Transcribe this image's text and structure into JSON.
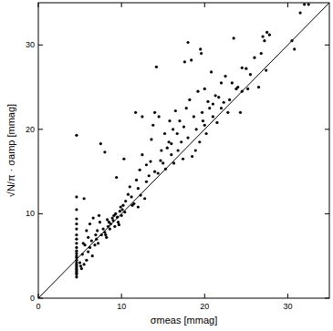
{
  "chart_data": {
    "type": "scatter",
    "x_label": "σmeas [mmag]",
    "y_label": "√N/π · σamp [mmag]",
    "xlim": [
      0,
      35
    ],
    "ylim": [
      0,
      35
    ],
    "xticks": [
      0,
      10,
      20,
      30
    ],
    "yticks": [
      0,
      10,
      20,
      30
    ],
    "grid": false,
    "series": [
      {
        "type": "scatter",
        "marker": "dot",
        "color": "#000000",
        "x": [
          4.6,
          4.6,
          4.6,
          4.6,
          4.6,
          4.6,
          4.6,
          4.6,
          4.6,
          4.6,
          4.6,
          4.6,
          4.6,
          4.6,
          4.6,
          4.6,
          4.6,
          4.6,
          4.6,
          4.6,
          4.6,
          4.6,
          4.6,
          4.6,
          5.2,
          5.5,
          5.3,
          5.8,
          6,
          6.2,
          5.6,
          6.5,
          6.4,
          6.8,
          7,
          7.2,
          6.9,
          5.5,
          5.8,
          6.2,
          7.5,
          8,
          7.3,
          7.6,
          7.8,
          8,
          8.2,
          8.4,
          8.5,
          8.7,
          8.9,
          9,
          9.2,
          9.3,
          9.5,
          9.6,
          9.8,
          10,
          10.1,
          9.4,
          10.2,
          10.5,
          10.3,
          10.8,
          11,
          11.2,
          11.5,
          11.7,
          11.8,
          12,
          12,
          12.2,
          12.3,
          12.5,
          12.5,
          12.8,
          13,
          13,
          13.3,
          13.5,
          13.6,
          13.8,
          14,
          14,
          14.2,
          14.4,
          14.5,
          14.7,
          14.8,
          15,
          15.2,
          15.3,
          15.5,
          15.7,
          15.8,
          16,
          16,
          16.2,
          16.3,
          16.5,
          16.7,
          16.8,
          17,
          17.2,
          17.4,
          17.5,
          17.6,
          17.8,
          18,
          18,
          18.2,
          18.4,
          18.5,
          18.7,
          18.9,
          19,
          19.2,
          19.4,
          19.5,
          19.6,
          19.7,
          19.8,
          20,
          20,
          20.2,
          20.4,
          20.6,
          20.8,
          21,
          21,
          21.3,
          21.5,
          21.7,
          22,
          22,
          22.3,
          22.5,
          22.8,
          23,
          23.3,
          23.5,
          23.8,
          24,
          24.3,
          24.5,
          24.5,
          25,
          25.2,
          25.5,
          26,
          26.5,
          26.8,
          27,
          27.2,
          27.4,
          27.5,
          27.8,
          30.5,
          30.8,
          31.5,
          32,
          32.5,
          5,
          5.1,
          5.4,
          6,
          6.6,
          7.1,
          7.4,
          8.1,
          8.6,
          9.1,
          9.7,
          10.4,
          11.3,
          8.3,
          9.9
        ],
        "values": [
          2.5,
          2.8,
          3,
          3.2,
          3.4,
          3.6,
          3.8,
          4,
          4.2,
          4.5,
          4.8,
          5,
          5.3,
          5.6,
          6,
          6.5,
          7,
          7.5,
          8.2,
          8.8,
          9.4,
          10.5,
          12,
          19.3,
          3.5,
          4,
          5.2,
          4.5,
          5.5,
          6,
          6.3,
          5,
          6.8,
          6.3,
          7,
          6.5,
          7.5,
          11.8,
          8,
          8.8,
          18.3,
          17.3,
          9.8,
          7.5,
          8.2,
          7.8,
          7.2,
          8.5,
          9,
          8.8,
          9.5,
          9.2,
          8.5,
          10,
          9.6,
          9,
          10.3,
          9.8,
          10.5,
          14.3,
          11,
          11.5,
          16.5,
          12.3,
          13.2,
          12,
          11.2,
          22,
          14,
          13,
          10.8,
          15.2,
          12.2,
          17,
          21.5,
          11.8,
          13.8,
          15.8,
          14.5,
          16.2,
          18.8,
          20.5,
          22,
          15,
          27.4,
          14.8,
          21.5,
          16.3,
          17.5,
          16,
          19.5,
          15.3,
          17.8,
          18.5,
          21,
          17,
          18.3,
          20,
          16,
          22.2,
          19.5,
          17.5,
          21,
          18.5,
          16.5,
          20.3,
          28,
          22.5,
          19,
          30.3,
          23.5,
          28.2,
          16.8,
          21.5,
          17.5,
          20,
          24.5,
          18.5,
          29.5,
          29,
          22,
          21,
          24.8,
          20.5,
          19.5,
          23.3,
          22.5,
          26.8,
          23,
          21.5,
          24,
          20.8,
          23.8,
          25.5,
          22.5,
          23.2,
          26.3,
          22,
          23.5,
          25.5,
          30.8,
          24.8,
          25,
          22,
          24.5,
          27.3,
          27.2,
          24.8,
          26.5,
          28.5,
          25,
          29,
          31,
          30.5,
          27,
          31.5,
          31.2,
          30.5,
          29.5,
          33.8,
          34.8,
          34.8,
          4.2,
          3.8,
          6.5,
          7.2,
          9.5,
          8,
          9,
          7.5,
          8.2,
          9.8,
          8.7,
          10.2,
          11,
          9.3,
          10.8
        ]
      },
      {
        "type": "line",
        "line_style": "solid",
        "color": "#000000",
        "x": [
          0,
          35
        ],
        "values": [
          0,
          35
        ]
      }
    ]
  }
}
